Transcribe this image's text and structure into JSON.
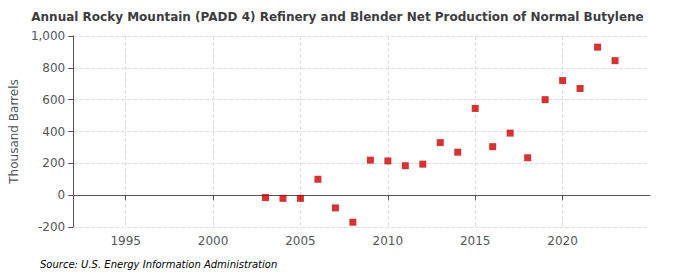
{
  "chart_data": {
    "type": "scatter",
    "title": "Annual Rocky Mountain (PADD 4) Refinery and Blender Net Production of Normal Butylene",
    "ylabel": "Thousand Barrels",
    "annotation": "Source: U.S. Energy Information Administration",
    "x": [
      2003,
      2004,
      2005,
      2006,
      2007,
      2008,
      2009,
      2010,
      2011,
      2012,
      2013,
      2014,
      2015,
      2016,
      2017,
      2018,
      2019,
      2020,
      2021,
      2022,
      2023
    ],
    "values": [
      -15,
      -20,
      -20,
      100,
      -80,
      -170,
      220,
      215,
      185,
      195,
      330,
      270,
      545,
      305,
      390,
      235,
      600,
      720,
      670,
      930,
      845
    ],
    "color": "#cc0000",
    "marker": "square",
    "xlim": [
      1992,
      2025
    ],
    "ylim": [
      -200,
      1000
    ],
    "xticks": [
      1995,
      2000,
      2005,
      2010,
      2015,
      2020
    ],
    "yticks": [
      -200,
      0,
      200,
      400,
      600,
      800,
      {
        "value": 1000,
        "label": "1,000"
      }
    ],
    "grid": true
  }
}
